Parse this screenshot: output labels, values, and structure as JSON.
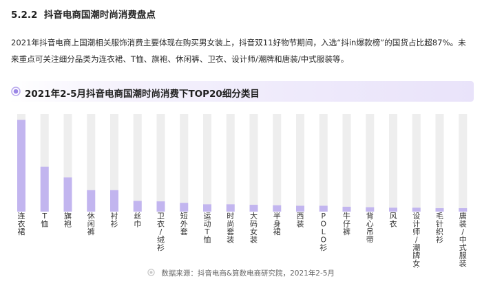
{
  "section": {
    "number": "5.2.2",
    "title": "抖音电商国潮时尚消费盘点"
  },
  "body_text": "2021年抖音电商上国潮相关服饰消费主要体现在购买男女装上，抖音双11好物节期间，入选“抖in爆款榜”的国货占比超87%。未来重点可关注细分品类为连衣裙、T恤、旗袍、休闲裤、卫衣、设计师/潮牌和唐装/中式服装等。",
  "chart_title": "2021年2-5月抖音电商国潮时尚消费下TOP20细分类目",
  "source_text": "数据来源：抖音电商&算数电商研究院，2021年2-5月",
  "colors": {
    "bar": "#c2b5ef",
    "track": "#eeeeee",
    "accent": "#9b86e6",
    "banner": "#e9e3fa"
  },
  "chart_data": {
    "type": "bar",
    "title": "2021年2-5月抖音电商国潮时尚消费下TOP20细分类目",
    "xlabel": "",
    "ylabel": "",
    "ylim": [
      0,
      100
    ],
    "y_axis_labels_shown": false,
    "grid": false,
    "categories": [
      "连衣裙",
      "T恤",
      "旗袍",
      "休闲裤",
      "衬衫",
      "丝巾",
      "卫衣/绒衫",
      "短外套",
      "运动T恤",
      "时尚套装",
      "大码女装",
      "半身裙",
      "西装",
      "POLO衫",
      "牛仔裤",
      "背心吊带",
      "风衣",
      "设计师/潮牌女装",
      "毛针织衫",
      "唐装/中式服装"
    ],
    "values": [
      94,
      46,
      35,
      22,
      22,
      11,
      10.5,
      9,
      7.5,
      7.5,
      7,
      6.5,
      6,
      6,
      5,
      4.5,
      4,
      4,
      3.5,
      3.5
    ]
  }
}
